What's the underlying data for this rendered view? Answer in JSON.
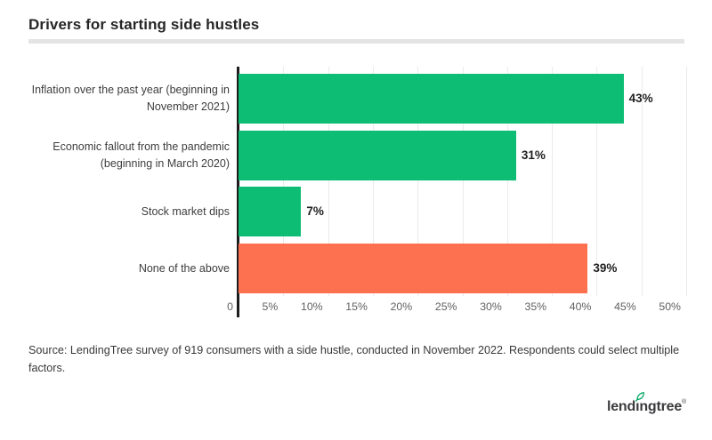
{
  "header": {
    "title": "Drivers for starting side hustles"
  },
  "chart_data": {
    "type": "bar",
    "orientation": "horizontal",
    "title": "Drivers for starting side hustles",
    "categories": [
      "Inflation over the past year (beginning in November 2021)",
      "Economic fallout from the pandemic (beginning in March 2020)",
      "Stock market dips",
      "None of the above"
    ],
    "category_lines": [
      [
        "Inflation over the past year (beginning in",
        "November 2021)"
      ],
      [
        "Economic fallout from the pandemic",
        "(beginning in March 2020)"
      ],
      [
        "Stock market dips"
      ],
      [
        "None of the above"
      ]
    ],
    "values": [
      43,
      31,
      7,
      39
    ],
    "value_labels": [
      "43%",
      "31%",
      "7%",
      "39%"
    ],
    "bar_colors": [
      "#0dbd74",
      "#0dbd74",
      "#0dbd74",
      "#fd7150"
    ],
    "xlim": [
      0,
      50
    ],
    "x_ticks": [
      "0",
      "5%",
      "10%",
      "15%",
      "20%",
      "25%",
      "30%",
      "35%",
      "40%",
      "45%",
      "50%"
    ],
    "grid": true,
    "legend": "none"
  },
  "source_note": "Source: LendingTree survey of 919 consumers with a side hustle, conducted in November 2022. Respondents could select multiple factors.",
  "logo": {
    "segment_before": "lend",
    "dotless_i": "ı",
    "segment_after": "ngtree",
    "trademark": "®",
    "leaf_color": "#00a560",
    "text_color": "#3b3b3e"
  },
  "colors": {
    "green": "#0dbd74",
    "orange": "#fd7150",
    "gridline": "#ebebeb",
    "axis": "#1c1c1c",
    "divider": "#e4e4e4"
  }
}
